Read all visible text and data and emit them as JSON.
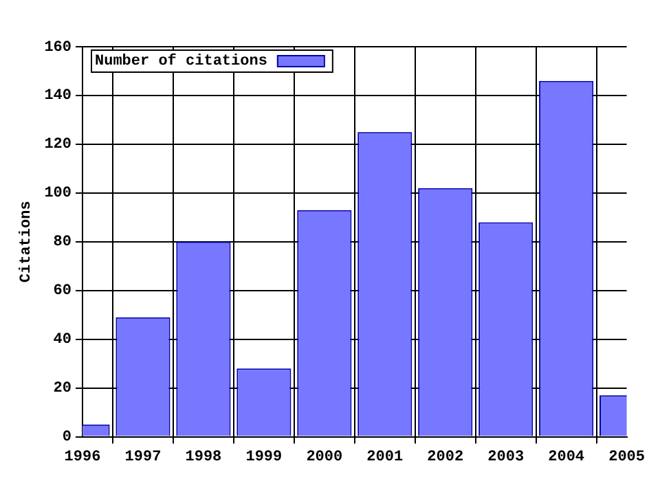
{
  "chart_data": {
    "type": "bar",
    "ylabel": "Citations",
    "x": [
      1996,
      1997,
      1998,
      1999,
      2000,
      2001,
      2002,
      2003,
      2004,
      2005
    ],
    "series": [
      {
        "name": "Number of citations",
        "color": "#7777ff",
        "values": [
          5,
          49,
          80,
          28,
          93,
          125,
          102,
          88,
          146,
          17
        ]
      }
    ],
    "xlim": [
      1996,
      2005
    ],
    "xticks": [
      1996,
      1997,
      1998,
      1999,
      2000,
      2001,
      2002,
      2003,
      2004,
      2005
    ],
    "ylim": [
      0,
      160
    ],
    "yticks": [
      0,
      20,
      40,
      60,
      80,
      100,
      120,
      140,
      160
    ],
    "grid": true,
    "legend": "top left"
  }
}
